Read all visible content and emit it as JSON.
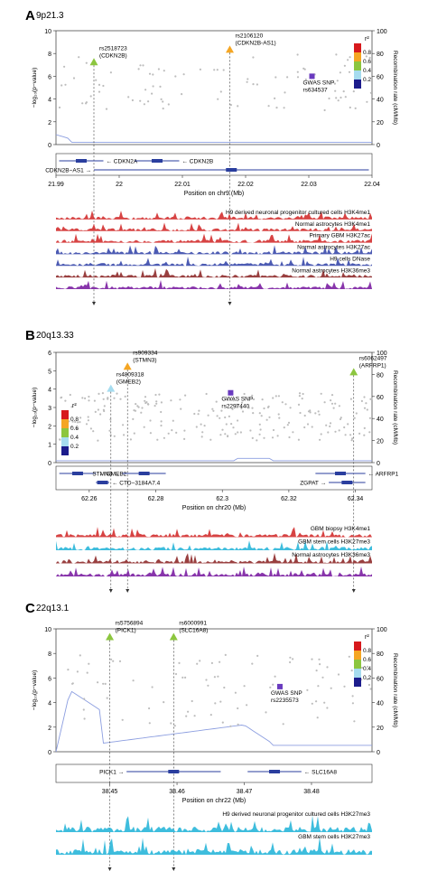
{
  "colors": {
    "r2_scale": [
      "#d7191c",
      "#f5a623",
      "#8cc63f",
      "#a6dcef",
      "#1c1c8c"
    ],
    "gwas_snp": "#6a3bbf",
    "background_snp": "#bdbdbd",
    "recomb_line": "#8c9ee0",
    "gene": "#2a3e9e",
    "tracks": {
      "red": "#d32f2f",
      "blue": "#3949ab",
      "maroon": "#8e2a2a",
      "purple": "#7b1fa2",
      "cyan": "#29b6d9"
    }
  },
  "common": {
    "ylabel_left": "−log₁₀(p−value)",
    "ylabel_right": "Recombination rate (cM/Mb)",
    "legend_title": "r²",
    "legend_ticks": [
      "0.8",
      "0.6",
      "0.4",
      "0.2"
    ]
  },
  "chart_data": [
    {
      "type": "scatter",
      "panel_letter": "A",
      "region": "9p21.3",
      "xlabel": "Position on chr9 (Mb)",
      "xlim": [
        21.99,
        22.04
      ],
      "xticks": [
        "21.99",
        "22",
        "22.01",
        "22.02",
        "22.03",
        "22.04"
      ],
      "ylim": [
        0,
        10
      ],
      "yticks": [
        "0",
        "2",
        "4",
        "6",
        "8",
        "10"
      ],
      "y2lim": [
        0,
        100
      ],
      "y2ticks": [
        "0",
        "20",
        "40",
        "60",
        "80",
        "100"
      ],
      "legend_position": "top-right",
      "snps": [
        {
          "label": "rs2518723\n(CDKN2B)",
          "x": 21.996,
          "y": 7.2,
          "r2_class": 2
        },
        {
          "label": "rs2106120\n(CDKN2B-AS1)",
          "x": 22.0175,
          "y": 8.3,
          "r2_class": 1
        },
        {
          "label": "GWAS SNP\nrs634537",
          "x": 22.0305,
          "y": 6.0,
          "r2_class": -1
        }
      ],
      "genes": [
        {
          "name": "CDKN2A",
          "start": 21.9905,
          "end": 21.9975,
          "strand": "-",
          "row": 1
        },
        {
          "name": "CDKN2B",
          "start": 22.0025,
          "end": 22.0095,
          "strand": "-",
          "row": 1
        },
        {
          "name": "CDKN2B−AS1",
          "start": 21.996,
          "end": 22.0395,
          "strand": "+",
          "row": 2
        }
      ],
      "tracks": [
        {
          "label": "H9 derived neuronal progenitor cultured cells H3K4me1",
          "color": "red"
        },
        {
          "label": "Normal astrocytes H3K4me1",
          "color": "red"
        },
        {
          "label": "Primary GBM H3K27ac",
          "color": "red"
        },
        {
          "label": "Normal astrocytes H3K27ac",
          "color": "blue"
        },
        {
          "label": "H9 cells DNase",
          "color": "blue"
        },
        {
          "label": "Normal astrocytes H3K36me3",
          "color": "maroon"
        },
        {
          "label": "",
          "color": "purple"
        }
      ]
    },
    {
      "type": "scatter",
      "panel_letter": "B",
      "region": "20q13.33",
      "xlabel": "Position on chr20 (Mb)",
      "xlim": [
        62.25,
        62.345
      ],
      "xticks": [
        "62.26",
        "62.28",
        "62.3",
        "62.32",
        "62.34"
      ],
      "xtick_values": [
        62.26,
        62.28,
        62.3,
        62.32,
        62.34
      ],
      "ylim": [
        0,
        6
      ],
      "yticks": [
        "0",
        "1",
        "2",
        "3",
        "4",
        "5",
        "6"
      ],
      "y2lim": [
        0,
        100
      ],
      "y2ticks": [
        "0",
        "20",
        "40",
        "60",
        "80",
        "100"
      ],
      "legend_position": "left",
      "snps": [
        {
          "label": "rs4809318\n(GMEB2)",
          "x": 62.2665,
          "y": 4.0,
          "r2_class": 3
        },
        {
          "label": "rs909334\n(STMN3)",
          "x": 62.2715,
          "y": 5.2,
          "r2_class": 1
        },
        {
          "label": "GWAS SNP\nrs2297440",
          "x": 62.3025,
          "y": 3.8,
          "r2_class": -1
        },
        {
          "label": "rs6062497\n(ARFRP1)",
          "x": 62.3395,
          "y": 4.9,
          "r2_class": 2
        }
      ],
      "genes": [
        {
          "name": "GMEB2",
          "start": 62.251,
          "end": 62.262,
          "strand": "-",
          "row": 1
        },
        {
          "name": "STMN3",
          "start": 62.27,
          "end": 62.283,
          "strand": "+",
          "row": 1
        },
        {
          "name": "ARFRP1",
          "start": 62.328,
          "end": 62.343,
          "strand": "-",
          "row": 1
        },
        {
          "name": "CTD−3184A7.4",
          "start": 62.262,
          "end": 62.266,
          "strand": "-",
          "row": 2
        },
        {
          "name": "ZGPAT",
          "start": 62.332,
          "end": 62.343,
          "strand": "+",
          "row": 2
        }
      ],
      "tracks": [
        {
          "label": "GBM biopsy H3K4me1",
          "color": "red"
        },
        {
          "label": "GBM stem cells H3K27me3",
          "color": "cyan"
        },
        {
          "label": "Normal astrocytes H3K36me3",
          "color": "maroon"
        },
        {
          "label": "",
          "color": "purple"
        }
      ]
    },
    {
      "type": "scatter",
      "panel_letter": "C",
      "region": "22q13.1",
      "xlabel": "Position on chr22 (Mb)",
      "xlim": [
        38.442,
        38.489
      ],
      "xticks": [
        "38.45",
        "38.46",
        "38.47",
        "38.48"
      ],
      "xtick_values": [
        38.45,
        38.46,
        38.47,
        38.48
      ],
      "ylim": [
        0,
        10
      ],
      "yticks": [
        "0",
        "2",
        "4",
        "6",
        "8",
        "10"
      ],
      "y2lim": [
        0,
        100
      ],
      "y2ticks": [
        "0",
        "20",
        "40",
        "60",
        "80",
        "100"
      ],
      "legend_position": "top-right",
      "snps": [
        {
          "label": "rs5756894\n(PICK1)",
          "x": 38.45,
          "y": 9.3,
          "r2_class": 2
        },
        {
          "label": "rs6000991\n(SLC16A8)",
          "x": 38.4595,
          "y": 9.3,
          "r2_class": 2
        },
        {
          "label": "GWAS SNP\nrs2235573",
          "x": 38.4753,
          "y": 5.3,
          "r2_class": -1
        }
      ],
      "genes": [
        {
          "name": "PICK1",
          "start": 38.4525,
          "end": 38.4665,
          "strand": "+",
          "row": 1
        },
        {
          "name": "SLC16A8",
          "start": 38.4705,
          "end": 38.4785,
          "strand": "-",
          "row": 1
        }
      ],
      "tracks": [
        {
          "label": "H9 derived neuronal progenitor cultured cells H3K27me3",
          "color": "cyan"
        },
        {
          "label": "GBM stem cells H3K27me3",
          "color": "cyan"
        }
      ]
    }
  ]
}
